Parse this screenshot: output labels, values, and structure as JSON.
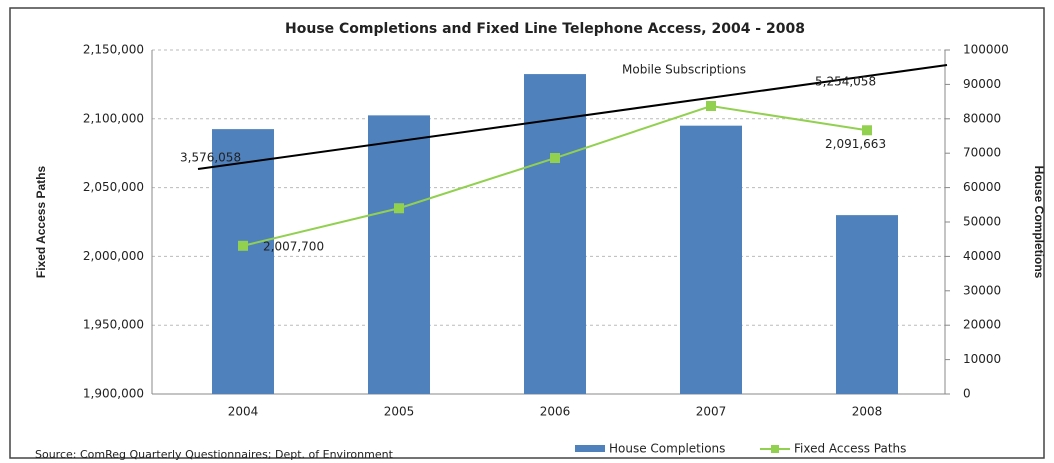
{
  "chart_data": {
    "type": "bar",
    "title": "House Completions and Fixed Line Telephone Access, 2004 - 2008",
    "y_label": "Fixed Access Paths",
    "y2_label": "House Completions",
    "source": "Source: ComReg Quarterly Questionnaires;  Dept. of Environment",
    "categories": [
      "2004",
      "2005",
      "2006",
      "2007",
      "2008"
    ],
    "ylim": [
      1900000,
      2150000
    ],
    "yticks": [
      {
        "value": 1900000,
        "label": "1,900,000"
      },
      {
        "value": 1950000,
        "label": "1,950,000"
      },
      {
        "value": 2000000,
        "label": "2,000,000"
      },
      {
        "value": 2050000,
        "label": "2,050,000"
      },
      {
        "value": 2100000,
        "label": "2,100,000"
      },
      {
        "value": 2150000,
        "label": "2,150,000"
      }
    ],
    "y2lim": [
      0,
      100000
    ],
    "y2ticks": [
      0,
      10000,
      20000,
      30000,
      40000,
      50000,
      60000,
      70000,
      80000,
      90000,
      100000
    ],
    "grid": true,
    "legend": "bottom",
    "series": [
      {
        "name": "House Completions",
        "type": "bar",
        "color": "#4f81bd",
        "axis": "y2",
        "values": [
          77000,
          81000,
          93000,
          78000,
          52000
        ]
      },
      {
        "name": "Fixed Access Paths",
        "type": "line",
        "color": "#92d050",
        "axis": "y",
        "values": [
          2007700,
          2035000,
          2071500,
          2109300,
          2091663
        ],
        "value_labels": [
          "2,007,700",
          null,
          null,
          null,
          "2,091,663"
        ]
      }
    ],
    "mobile": {
      "name": "Mobile Subscriptions",
      "color": "#000000",
      "values": [
        3576058,
        null,
        null,
        null,
        5254058
      ],
      "value_labels": [
        "3,576,058",
        null,
        null,
        null,
        "5,254,058"
      ]
    }
  }
}
